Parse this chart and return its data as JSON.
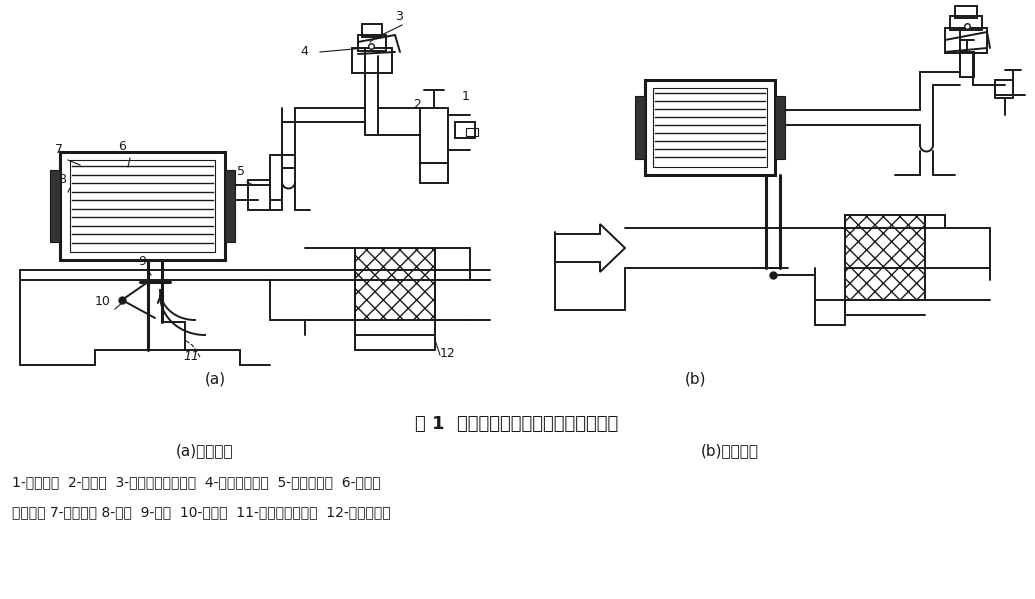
{
  "title": "图 1  进气恒温控制系统结构及工作原理",
  "subtitle_a": "(a)进热空气",
  "subtitle_b": "(b)进冷空气",
  "caption_line1": "1-真空软管  2-单向阀  3-温控开关感温元件  4-温控开关阀门  5-反向延迟阀  6-真空驱",
  "caption_line2": "动器外壳 7-膜片弹簧 8-膜片  9-拉杆  10-控制阀  11-热空气金属软管  12-空气滤清器",
  "label_a": "(a)",
  "label_b": "(b)",
  "bg_color": "#ffffff",
  "text_color": "#000000",
  "fig_width": 10.35,
  "fig_height": 5.99,
  "dpi": 100
}
